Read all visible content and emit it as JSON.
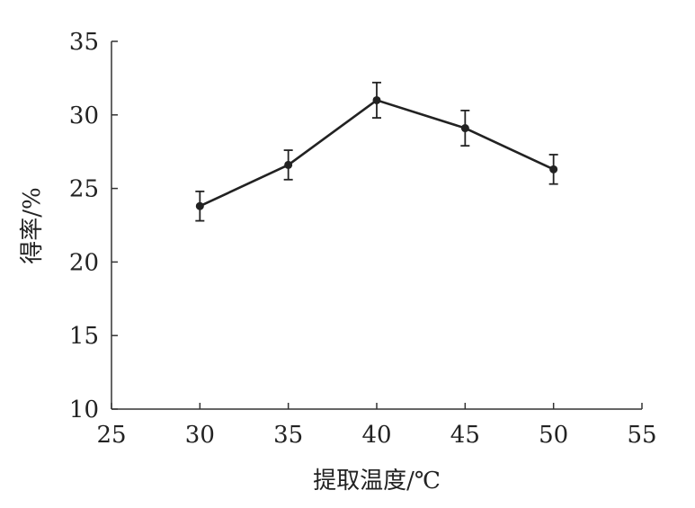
{
  "chart_data": {
    "type": "line",
    "title": "",
    "xlabel": "提取温度/℃",
    "ylabel": "得率/%",
    "xlim": [
      25,
      55
    ],
    "ylim": [
      10,
      35
    ],
    "xticks": [
      25,
      30,
      35,
      40,
      45,
      50,
      55
    ],
    "yticks": [
      10,
      15,
      20,
      25,
      30,
      35
    ],
    "grid": false,
    "legend": "none",
    "series": [
      {
        "x": [
          30,
          35,
          40,
          45,
          50
        ],
        "y": [
          23.8,
          26.6,
          31.0,
          29.1,
          26.3
        ],
        "error": [
          1.0,
          1.0,
          1.2,
          1.2,
          1.0
        ],
        "color": "#222222"
      }
    ]
  }
}
